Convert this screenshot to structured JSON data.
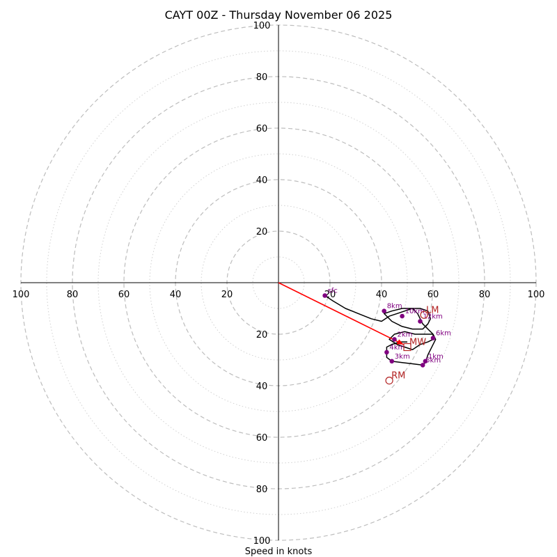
{
  "chart_data": {
    "type": "hodograph",
    "title": "CAYT 00Z - Thursday November 06 2025",
    "xlabel": "Speed in knots",
    "axis_range": [
      -100,
      100
    ],
    "major_rings": [
      20,
      40,
      60,
      80,
      100
    ],
    "minor_rings": [
      10,
      30,
      50,
      70,
      90
    ],
    "tick_values": [
      20,
      40,
      60,
      80,
      100
    ],
    "tick_labels": [
      "20",
      "40",
      "60",
      "80",
      "100"
    ],
    "colors": {
      "hodograph": "#000000",
      "height_marker": "#800080",
      "motion": "#b22222",
      "mean_wind_vector": "#ff0000",
      "ring": "#bdbdbd",
      "axis": "#000000"
    },
    "trace": [
      [
        18,
        -5
      ],
      [
        21,
        -7
      ],
      [
        26,
        -10
      ],
      [
        31,
        -12
      ],
      [
        36,
        -14
      ],
      [
        40,
        -15
      ],
      [
        43,
        -13
      ],
      [
        46,
        -12
      ],
      [
        49,
        -11
      ],
      [
        52,
        -10
      ],
      [
        55,
        -10
      ],
      [
        58,
        -11
      ],
      [
        59,
        -14
      ],
      [
        58,
        -16
      ],
      [
        56,
        -18
      ],
      [
        52,
        -18
      ],
      [
        48,
        -17
      ],
      [
        44,
        -15
      ],
      [
        41,
        -12
      ],
      [
        44,
        -11
      ],
      [
        48,
        -10
      ],
      [
        52,
        -10
      ],
      [
        54,
        -12
      ],
      [
        55,
        -14
      ],
      [
        56,
        -16
      ],
      [
        58,
        -18
      ],
      [
        60,
        -20
      ],
      [
        60,
        -22
      ],
      [
        58,
        -23
      ],
      [
        55,
        -24
      ],
      [
        52,
        -26
      ],
      [
        49,
        -25
      ],
      [
        46,
        -24
      ],
      [
        43,
        -22
      ],
      [
        45,
        -20
      ],
      [
        49,
        -19
      ],
      [
        53,
        -20
      ],
      [
        57,
        -20
      ],
      [
        60,
        -20
      ],
      [
        61,
        -22
      ],
      [
        60,
        -24
      ],
      [
        59,
        -26
      ],
      [
        58,
        -28
      ],
      [
        57,
        -31
      ],
      [
        56,
        -32
      ],
      [
        52,
        -31.5
      ],
      [
        48,
        -31
      ],
      [
        44,
        -30.5
      ],
      [
        42,
        -29
      ],
      [
        42,
        -27
      ],
      [
        42,
        -25
      ],
      [
        44,
        -24
      ],
      [
        47,
        -23
      ],
      [
        50,
        -23
      ]
    ],
    "height_markers": [
      {
        "label": "sfc",
        "x": 18,
        "y": -5
      },
      {
        "label": "1km",
        "x": 57,
        "y": -30.5
      },
      {
        "label": "2km",
        "x": 45,
        "y": -22
      },
      {
        "label": "3km",
        "x": 44,
        "y": -30.5
      },
      {
        "label": "4km",
        "x": 42,
        "y": -27
      },
      {
        "label": "5km",
        "x": 56,
        "y": -32
      },
      {
        "label": "6km",
        "x": 60,
        "y": -21.5
      },
      {
        "label": "8km",
        "x": 41,
        "y": -11
      },
      {
        "label": "10km",
        "x": 48,
        "y": -13
      },
      {
        "label": "12km",
        "x": 55,
        "y": -15
      }
    ],
    "storm_motion": [
      {
        "label": "LM",
        "x": 56.5,
        "y": -12.5,
        "marker": "circle"
      },
      {
        "label": "MW",
        "x": 50,
        "y": -25,
        "marker": "square"
      },
      {
        "label": "RM",
        "x": 43,
        "y": -38,
        "marker": "circle"
      }
    ],
    "mean_wind_vector": {
      "x": 48.5,
      "y": -24
    }
  }
}
